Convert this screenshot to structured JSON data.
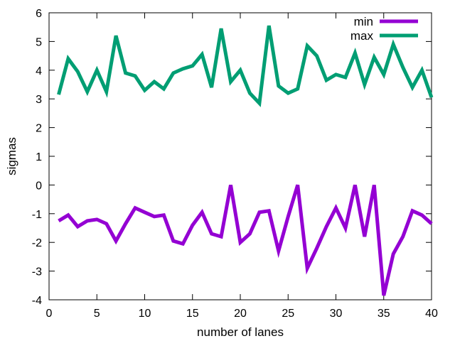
{
  "chart_data": {
    "type": "line",
    "title": "",
    "xlabel": "number of lanes",
    "ylabel": "sigmas",
    "xlim": [
      0,
      40
    ],
    "ylim": [
      -4,
      6
    ],
    "xticks": [
      0,
      5,
      10,
      15,
      20,
      25,
      30,
      35,
      40
    ],
    "yticks": [
      -4,
      -3,
      -2,
      -1,
      0,
      1,
      2,
      3,
      4,
      5,
      6
    ],
    "grid": false,
    "legend_position": "top-right",
    "x": [
      1,
      2,
      3,
      4,
      5,
      6,
      7,
      8,
      9,
      10,
      11,
      12,
      13,
      14,
      15,
      16,
      17,
      18,
      19,
      20,
      21,
      22,
      23,
      24,
      25,
      26,
      27,
      28,
      29,
      30,
      31,
      32,
      33,
      34,
      35,
      36,
      37,
      38,
      39,
      40
    ],
    "series": [
      {
        "name": "min",
        "color": "#9400d3",
        "values": [
          -1.25,
          -1.05,
          -1.45,
          -1.25,
          -1.2,
          -1.35,
          -1.95,
          -1.35,
          -0.8,
          -0.95,
          -1.1,
          -1.05,
          -1.95,
          -2.05,
          -1.4,
          -0.95,
          -1.7,
          -1.8,
          0,
          -2.0,
          -1.7,
          -0.95,
          -0.9,
          -2.3,
          -1.1,
          0,
          -2.9,
          -2.2,
          -1.45,
          -0.8,
          -1.5,
          0,
          -1.8,
          0,
          -3.85,
          -2.4,
          -1.8,
          -0.9,
          -1.05,
          -1.35
        ]
      },
      {
        "name": "max",
        "color": "#009e73",
        "values": [
          3.15,
          4.4,
          3.95,
          3.25,
          4.0,
          3.25,
          5.2,
          3.9,
          3.8,
          3.3,
          3.6,
          3.35,
          3.9,
          4.05,
          4.15,
          4.55,
          3.4,
          5.45,
          3.6,
          4.0,
          3.2,
          2.85,
          5.55,
          3.45,
          3.2,
          3.35,
          4.85,
          4.5,
          3.65,
          3.85,
          3.75,
          4.6,
          3.5,
          4.45,
          3.85,
          4.9,
          4.1,
          3.4,
          4.0,
          3.05
        ]
      }
    ]
  }
}
